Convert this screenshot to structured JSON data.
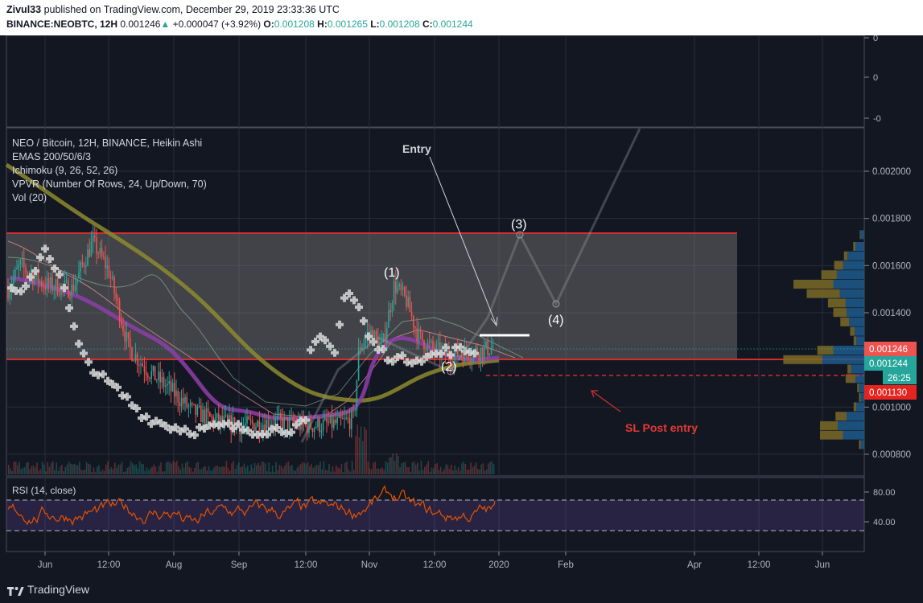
{
  "header": {
    "publisher": "Zivul33",
    "published_text": "published on TradingView.com, December 29, 2019 23:33:36 UTC",
    "symbol": "BINANCE:NEOBTC, 12H",
    "last": "0.001246",
    "change_arrow": "▲",
    "change": "+0.000047 (+3.92%)",
    "open_label": "O:",
    "open": "0.001208",
    "high_label": "H:",
    "high": "0.001265",
    "low_label": "L:",
    "low": "0.001208",
    "close_label": "C:",
    "close": "0.001244"
  },
  "footer": {
    "brand": "TradingView",
    "logo_icon": "tradingview-logo-icon"
  },
  "legend": {
    "title": "NEO / Bitcoin, 12H, BINANCE, Heikin Ashi",
    "emas": "EMAS 200/50/6/3",
    "ichimoku": "Ichimoku (9, 26, 52, 26)",
    "vpvr": "VPVR (Number Of Rows, 24, Up/Down, 70)",
    "vol": "Vol (20)"
  },
  "top_pane": {
    "ticks": [
      "0",
      "0",
      "-0"
    ]
  },
  "annotations": {
    "entry": "Entry",
    "wave1": "(1)",
    "wave2": "(2)",
    "wave3": "(3)",
    "wave4": "(4)",
    "sl": "SL Post entry"
  },
  "price_labels": {
    "last": "0.001246",
    "close": "0.001244",
    "timer": "26:25",
    "sl": "0.001130"
  },
  "rsi": {
    "label": "RSI (14, close)",
    "ticks": [
      "80.00",
      "40.00"
    ],
    "upper": 70,
    "lower": 30
  },
  "colors": {
    "background": "#131722",
    "up": "#26a69a",
    "down": "#ef5350",
    "resistance": "#d32f2f",
    "zone": "#808080",
    "ema200": "#8d8a2e",
    "ema50": "#8e3ea8",
    "rsi_line": "#e65100",
    "vp_up": "#1e5a8c",
    "vp_down": "#7a6a26"
  },
  "chart_data": {
    "type": "line",
    "title": "NEO / Bitcoin, 12H, BINANCE, Heikin Ashi",
    "x_ticks": [
      "Jun",
      "12:00",
      "Aug",
      "Sep",
      "12:00",
      "Nov",
      "12:00",
      "2020",
      "Feb",
      "Apr",
      "12:00",
      "Jun"
    ],
    "y_ticks": [
      "0.002000",
      "0.001800",
      "0.001600",
      "0.001400",
      "0.001000",
      "0.000800"
    ],
    "ylim": [
      0.00074,
      0.00226
    ],
    "zone": {
      "top": 0.00174,
      "bottom": 0.00124
    },
    "resistance": [
      0.00174,
      0.00124
    ],
    "stop_loss": 0.00113,
    "entry_price": 0.0013,
    "price_series_approx": {
      "x": [
        "Jun",
        "12:00",
        "Aug",
        "Sep",
        "12:00",
        "Nov",
        "12:00",
        "2020"
      ],
      "y": [
        0.0015,
        0.0016,
        0.001,
        0.00092,
        0.00094,
        0.00148,
        0.00122,
        0.001244
      ]
    },
    "projection": {
      "labels": [
        "(2)",
        "(3)",
        "(4)"
      ],
      "y": [
        0.00118,
        0.00173,
        0.00143
      ]
    },
    "rsi": {
      "ylim": [
        10,
        100
      ],
      "overbought": 70,
      "oversold": 30
    }
  }
}
